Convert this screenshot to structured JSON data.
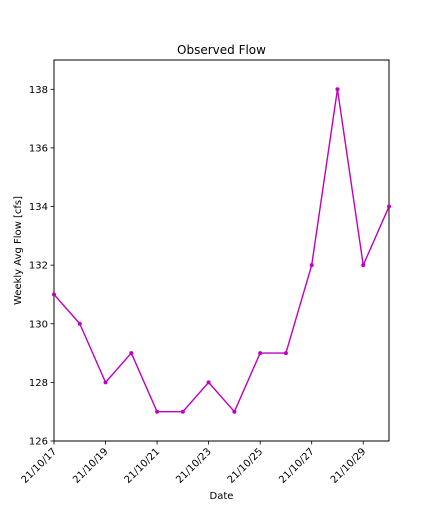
{
  "chart_data": {
    "type": "line",
    "title": "Observed Flow",
    "xlabel": "Date",
    "ylabel": "Weekly Avg Flow [cfs]",
    "x": [
      "21/10/17",
      "21/10/18",
      "21/10/19",
      "21/10/20",
      "21/10/21",
      "21/10/22",
      "21/10/23",
      "21/10/24",
      "21/10/25",
      "21/10/26",
      "21/10/27",
      "21/10/28",
      "21/10/29",
      "21/10/30"
    ],
    "series": [
      {
        "values": [
          131,
          130,
          128,
          129,
          127,
          127,
          128,
          127,
          129,
          129,
          132,
          138,
          132,
          134
        ],
        "color": "#bf00bf"
      }
    ],
    "xticks": [
      "21/10/17",
      "21/10/19",
      "21/10/21",
      "21/10/23",
      "21/10/25",
      "21/10/27",
      "21/10/29"
    ],
    "yticks": [
      126,
      128,
      130,
      132,
      134,
      136,
      138
    ],
    "ylim": [
      126,
      139
    ],
    "xlim": [
      "21/10/17",
      "21/10/30"
    ],
    "grid": false,
    "legend": "none",
    "marker": "dot"
  }
}
